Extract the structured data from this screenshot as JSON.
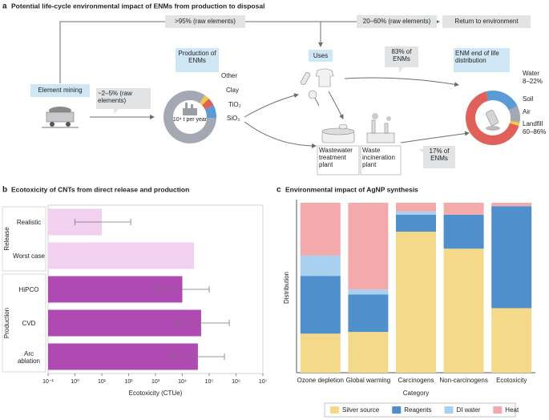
{
  "diagram": {
    "panel": "a",
    "title": "Potential life-cycle environmental impact of ENMs from production to disposal",
    "top_left_flow": ">95% (raw elements)",
    "top_right_flow": "20–60% (raw elements)",
    "return": "Return to environment",
    "mining": "Element mining",
    "mining_flow": "~2–5% (raw elements)",
    "production": {
      "label": "Production of ENMs",
      "center": "10⁴ t per year",
      "segments": [
        {
          "name": "Other",
          "value": 3,
          "color": "#f0c94a"
        },
        {
          "name": "Clay",
          "value": 5,
          "color": "#e0605a"
        },
        {
          "name": "TiO₂",
          "value": 8,
          "color": "#5b9bd5"
        },
        {
          "name": "SiO₂",
          "value": 84,
          "color": "#a3a8b3"
        }
      ]
    },
    "uses": "Uses",
    "uses_flow": "83% of ENMs",
    "wastewater": "Wastewater treatment plant",
    "incineration": "Waste incineration plant",
    "waste_flow": "17% of ENMs",
    "end_of_life": {
      "label": "ENM end of life distribution",
      "segments": [
        {
          "name": "Water",
          "range": "8–22%",
          "value": 22,
          "color": "#5b9bd5"
        },
        {
          "name": "Soil",
          "value": 10,
          "color": "#a3a8b3"
        },
        {
          "name": "Air",
          "value": 2,
          "color": "#f0c94a"
        },
        {
          "name": "Landfill",
          "range": "60–86%",
          "value": 66,
          "color": "#e0605a"
        }
      ]
    }
  },
  "chart_data": [
    {
      "type": "hbar",
      "panel": "b",
      "title": "Ecotoxicity of CNTs from direct release and production",
      "xlabel": "Ecotoxicity (CTUe)",
      "xscale": "log",
      "xlim": [
        0.1,
        10000000
      ],
      "xticks": [
        {
          "value": 0.1,
          "label": "10⁻¹"
        },
        {
          "value": 1,
          "label": "10⁰"
        },
        {
          "value": 10,
          "label": "10¹"
        },
        {
          "value": 100,
          "label": "10²"
        },
        {
          "value": 1000,
          "label": "10³"
        },
        {
          "value": 10000,
          "label": "10⁴"
        },
        {
          "value": 100000,
          "label": "10⁵"
        },
        {
          "value": 1000000,
          "label": "10⁶"
        },
        {
          "value": 10000000,
          "label": "10⁷"
        }
      ],
      "groups": [
        {
          "name": "Release",
          "color": "#f2d0ef",
          "categories": [
            "Realistic",
            "Worst case"
          ],
          "values": [
            10,
            27000
          ],
          "error_low": [
            1,
            null
          ],
          "error_high": [
            120,
            null
          ]
        },
        {
          "name": "Production",
          "color": "#b04ab3",
          "categories": [
            "HiPCO",
            "CVD",
            "Arc ablation"
          ],
          "values": [
            10000,
            50000,
            38000
          ],
          "error_low": [
            1000,
            5000,
            4000
          ],
          "error_high": [
            100000,
            560000,
            370000
          ]
        }
      ]
    },
    {
      "type": "stacked_bar",
      "panel": "c",
      "title": "Environmental impact of AgNP synthesis",
      "ylabel": "Distribution",
      "xlabel": "Category",
      "categories": [
        "Ozone depletion",
        "Global warming",
        "Carcinogens",
        "Non-carcinogens",
        "Ecotoxicity"
      ],
      "ylim": [
        0,
        100
      ],
      "legend": "bottom",
      "series": [
        {
          "name": "Silver source",
          "color": "#f5d98b",
          "values": [
            23,
            24,
            83,
            73,
            38
          ]
        },
        {
          "name": "Reagents",
          "color": "#4f8fcb",
          "values": [
            34,
            22,
            10,
            20,
            60
          ]
        },
        {
          "name": "DI water",
          "color": "#a9d0ee",
          "values": [
            12,
            3,
            2,
            0,
            0
          ]
        },
        {
          "name": "Heat",
          "color": "#f4a9ab",
          "values": [
            31,
            51,
            5,
            7,
            2
          ]
        }
      ]
    }
  ]
}
